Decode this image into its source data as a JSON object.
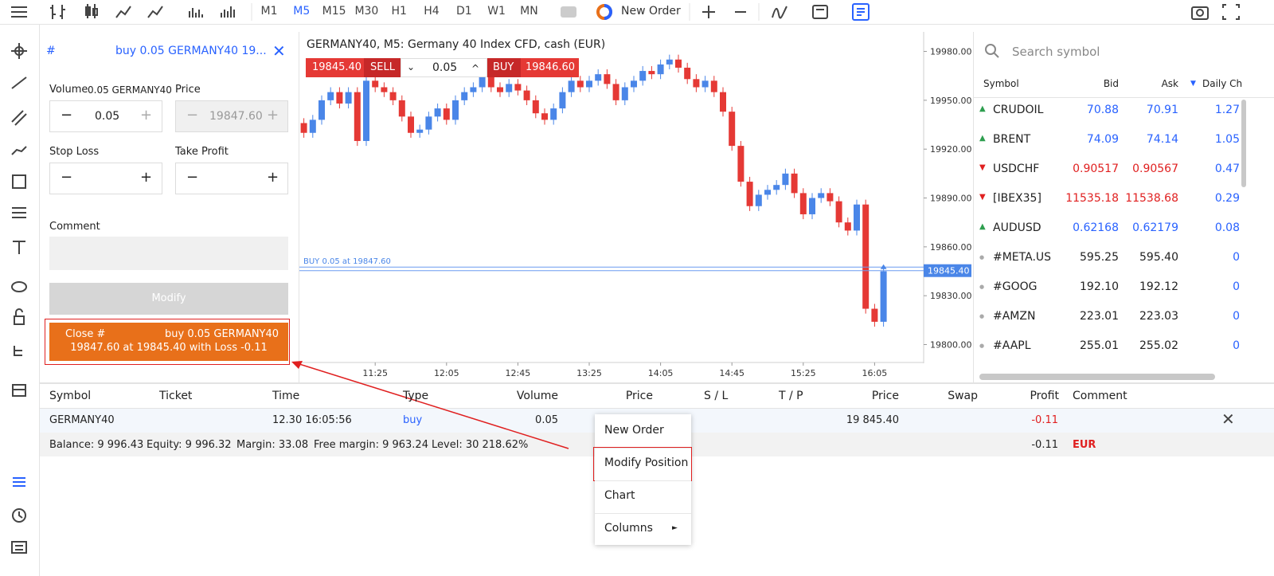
{
  "toolbar": {
    "timeframes": [
      "M1",
      "M5",
      "M15",
      "M30",
      "H1",
      "H4",
      "D1",
      "W1",
      "MN"
    ],
    "selected": 1,
    "new_order": "New Order"
  },
  "order_panel": {
    "hash": "#",
    "title": "buy 0.05 GERMANY40 19...",
    "volume_label": "Volume",
    "volume_symbol": "0.05 GERMANY40",
    "price_label": "Price",
    "volume": "0.05",
    "price": "19847.60",
    "stop_loss": "Stop Loss",
    "take_profit": "Take Profit",
    "comment": "Comment",
    "modify": "Modify",
    "close_label": "Close #",
    "close_order": "buy 0.05 GERMANY40",
    "close_detail": "19847.60 at 19845.40 with Loss -0.11"
  },
  "trade_bar": {
    "sell_price": "19845.40",
    "sell": "SELL",
    "lot": "0.05",
    "buy": "BUY",
    "buy_price": "19846.60"
  },
  "chart_data": {
    "type": "candlestick",
    "title": "GERMANY40, M5: Germany 40 Index CFD, cash (EUR)",
    "up_color": "#4a86e8",
    "down_color": "#e53935",
    "open": [
      19936,
      19930,
      19938,
      19950,
      19955,
      19948,
      19955,
      19925,
      19962,
      19958,
      19955,
      19950,
      19940,
      19930,
      19932,
      19940,
      19945,
      19938,
      19950,
      19955,
      19958,
      19965,
      19958,
      19955,
      19960,
      19956,
      19950,
      19942,
      19938,
      19945,
      19955,
      19962,
      19958,
      19962,
      19966,
      19960,
      19950,
      19958,
      19962,
      19968,
      19966,
      19972,
      19975,
      19970,
      19963,
      19958,
      19962,
      19955,
      19943,
      19922,
      19900,
      19885,
      19892,
      19895,
      19898,
      19905,
      19893,
      19880,
      19890,
      19893,
      19888,
      19875,
      19870,
      19886,
      19822,
      19814
    ],
    "high": [
      19939,
      19941,
      19953,
      19958,
      19958,
      19958,
      19958,
      19965,
      19965,
      19961,
      19958,
      19953,
      19943,
      19935,
      19943,
      19948,
      19948,
      19953,
      19958,
      19961,
      19968,
      19968,
      19961,
      19963,
      19963,
      19959,
      19953,
      19945,
      19948,
      19958,
      19965,
      19965,
      19965,
      19969,
      19969,
      19963,
      19961,
      19965,
      19971,
      19971,
      19975,
      19978,
      19978,
      19973,
      19966,
      19965,
      19965,
      19958,
      19946,
      19925,
      19903,
      19895,
      19898,
      19901,
      19908,
      19908,
      19896,
      19893,
      19896,
      19896,
      19891,
      19878,
      19889,
      19889,
      19825,
      19848
    ],
    "low": [
      19927,
      19927,
      19935,
      19947,
      19945,
      19945,
      19922,
      19922,
      19955,
      19952,
      19947,
      19937,
      19927,
      19927,
      19929,
      19937,
      19935,
      19935,
      19947,
      19952,
      19955,
      19955,
      19952,
      19952,
      19953,
      19947,
      19939,
      19935,
      19935,
      19942,
      19952,
      19955,
      19955,
      19959,
      19957,
      19947,
      19947,
      19955,
      19959,
      19963,
      19963,
      19969,
      19967,
      19960,
      19955,
      19955,
      19952,
      19940,
      19919,
      19897,
      19882,
      19882,
      19889,
      19892,
      19895,
      19890,
      19877,
      19877,
      19887,
      19885,
      19872,
      19867,
      19867,
      19819,
      19811,
      19811
    ],
    "close": [
      19930,
      19938,
      19950,
      19955,
      19948,
      19955,
      19925,
      19962,
      19958,
      19955,
      19950,
      19940,
      19930,
      19932,
      19940,
      19945,
      19938,
      19950,
      19955,
      19958,
      19965,
      19958,
      19955,
      19960,
      19956,
      19950,
      19942,
      19938,
      19945,
      19955,
      19962,
      19958,
      19962,
      19966,
      19960,
      19950,
      19958,
      19962,
      19968,
      19966,
      19972,
      19975,
      19970,
      19963,
      19958,
      19962,
      19955,
      19943,
      19922,
      19900,
      19885,
      19892,
      19895,
      19898,
      19905,
      19893,
      19880,
      19890,
      19893,
      19888,
      19875,
      19870,
      19886,
      19822,
      19814,
      19845
    ],
    "xlim": [
      -0.5,
      69.5
    ],
    "ylim": [
      19789,
      19992
    ],
    "xticks": [
      {
        "value": 8,
        "label": "11:25"
      },
      {
        "value": 16,
        "label": "12:05"
      },
      {
        "value": 24,
        "label": "12:45"
      },
      {
        "value": 32,
        "label": "13:25"
      },
      {
        "value": 40,
        "label": "14:05"
      },
      {
        "value": 48,
        "label": "14:45"
      },
      {
        "value": 56,
        "label": "15:25"
      },
      {
        "value": 64,
        "label": "16:05"
      }
    ],
    "yticks": [
      {
        "value": 19980,
        "label": "19980.00"
      },
      {
        "value": 19950,
        "label": "19950.00"
      },
      {
        "value": 19920,
        "label": "19920.00"
      },
      {
        "value": 19890,
        "label": "19890.00"
      },
      {
        "value": 19860,
        "label": "19860.00"
      },
      {
        "value": 19830,
        "label": "19830.00"
      },
      {
        "value": 19800,
        "label": "19800.00"
      }
    ],
    "position_line": {
      "value": 19847.6,
      "label": "BUY 0.05 at 19847.60"
    },
    "bid_line": {
      "value": 19845.4,
      "label": "19845.40"
    }
  },
  "watchlist": {
    "search": "Search symbol",
    "columns": [
      "Symbol",
      "Bid",
      "Ask",
      "Daily Ch"
    ],
    "rows": [
      {
        "trend": "up",
        "symbol": "CRUDOIL",
        "bid": "70.88",
        "ask": "70.91",
        "change": "1.27"
      },
      {
        "trend": "up",
        "symbol": "BRENT",
        "bid": "74.09",
        "ask": "74.14",
        "change": "1.05"
      },
      {
        "trend": "down",
        "symbol": "USDCHF",
        "bid": "0.90517",
        "ask": "0.90567",
        "change": "0.47"
      },
      {
        "trend": "down",
        "symbol": "[IBEX35]",
        "bid": "11535.18",
        "ask": "11538.68",
        "change": "0.29"
      },
      {
        "trend": "up",
        "symbol": "AUDUSD",
        "bid": "0.62168",
        "ask": "0.62179",
        "change": "0.08"
      },
      {
        "trend": "flat",
        "symbol": "#META.US",
        "bid": "595.25",
        "ask": "595.40",
        "change": "0"
      },
      {
        "trend": "flat",
        "symbol": "#GOOG",
        "bid": "192.10",
        "ask": "192.12",
        "change": "0"
      },
      {
        "trend": "flat",
        "symbol": "#AMZN",
        "bid": "223.01",
        "ask": "223.03",
        "change": "0"
      },
      {
        "trend": "flat",
        "symbol": "#AAPL",
        "bid": "255.01",
        "ask": "255.02",
        "change": "0"
      }
    ]
  },
  "positions": {
    "columns": [
      "Symbol",
      "Ticket",
      "Time",
      "Type",
      "Volume",
      "Price",
      "S / L",
      "T / P",
      "Price",
      "Swap",
      "Profit",
      "Comment"
    ],
    "row": {
      "symbol": "GERMANY40",
      "time": "12.30 16:05:56",
      "type": "buy",
      "volume": "0.05",
      "current_price": "19 845.40",
      "profit": "-0.11"
    },
    "summary": [
      "Balance: 9 996.43",
      "Equity: 9 996.32",
      "Margin: 33.08",
      "Free margin: 9 963.24",
      "Level: 30 218.62%"
    ],
    "summary_profit": "-0.11",
    "currency": "EUR"
  },
  "context_menu": {
    "items": [
      "New Order",
      "Modify Position",
      "Chart",
      "Columns"
    ]
  }
}
